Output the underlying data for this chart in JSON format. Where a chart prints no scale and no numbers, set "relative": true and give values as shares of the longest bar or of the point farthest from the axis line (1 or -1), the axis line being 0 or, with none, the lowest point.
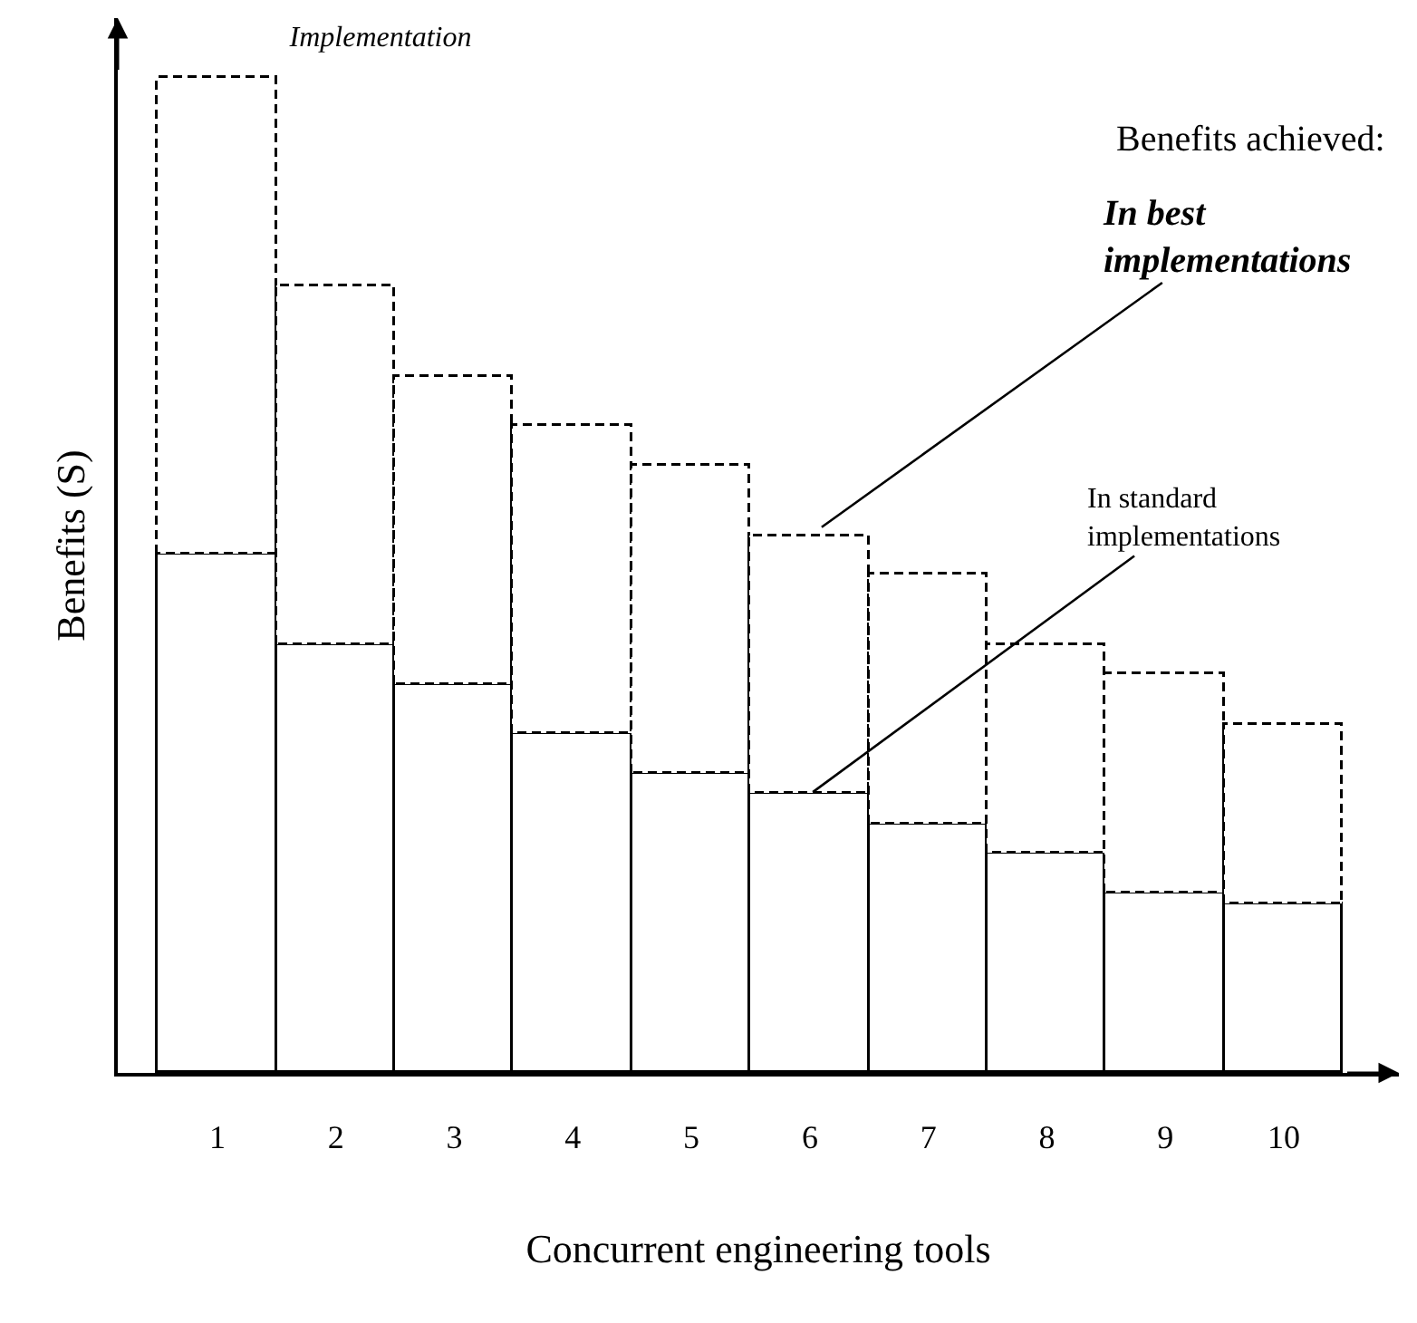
{
  "chart_data": {
    "type": "bar",
    "title": "Implementation",
    "xlabel": "Concurrent engineering tools",
    "ylabel": "Benefits (S)",
    "categories": [
      "1",
      "2",
      "3",
      "4",
      "5",
      "6",
      "7",
      "8",
      "9",
      "10"
    ],
    "relative": true,
    "stacked": true,
    "legend": false,
    "series": [
      {
        "name": "In standard implementations",
        "color": "#ffffff",
        "line_style": "solid",
        "values": [
          0.52,
          0.43,
          0.39,
          0.34,
          0.3,
          0.28,
          0.25,
          0.22,
          0.18,
          0.17
        ]
      },
      {
        "name": "In best implementations",
        "color": "#ffffff",
        "line_style": "dashed",
        "values": [
          0.48,
          0.36,
          0.31,
          0.31,
          0.31,
          0.26,
          0.25,
          0.21,
          0.22,
          0.18
        ]
      }
    ],
    "annotations": [
      "Benefits achieved:"
    ]
  }
}
